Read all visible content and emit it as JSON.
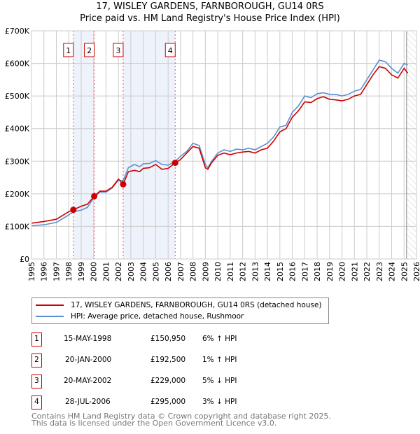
{
  "chart_data": {
    "type": "line",
    "title": "17, WISLEY GARDENS, FARNBOROUGH, GU14 0RS",
    "subtitle": "Price paid vs. HM Land Registry's House Price Index (HPI)",
    "xlim": [
      1995,
      2026
    ],
    "ylim": [
      0,
      700000
    ],
    "y_ticks": [
      0,
      100000,
      200000,
      300000,
      400000,
      500000,
      600000,
      700000
    ],
    "y_tick_labels": [
      "£0",
      "£100K",
      "£200K",
      "£300K",
      "£400K",
      "£500K",
      "£600K",
      "£700K"
    ],
    "x_tick_labels": [
      "1995",
      "1996",
      "1997",
      "1998",
      "1999",
      "2000",
      "2001",
      "2002",
      "2003",
      "2004",
      "2005",
      "2006",
      "2007",
      "2008",
      "2009",
      "2010",
      "2011",
      "2012",
      "2013",
      "2014",
      "2015",
      "2016",
      "2017",
      "2018",
      "2019",
      "2020",
      "2021",
      "2022",
      "2023",
      "2024",
      "2025",
      "2026"
    ],
    "grid": true,
    "forecast_start": 2025.2,
    "colors": {
      "property": "#cc0000",
      "hpi": "#5b8fd0",
      "band": "#eef2fb"
    },
    "series": [
      {
        "name": "17, WISLEY GARDENS, FARNBOROUGH, GU14 0RS (detached house)",
        "x": [
          1995,
          1996,
          1997,
          1998,
          1998.37,
          1999,
          1999.5,
          2000.05,
          2000.5,
          2001,
          2001.5,
          2002,
          2002.38,
          2002.8,
          2003.3,
          2003.7,
          2004,
          2004.5,
          2005,
          2005.5,
          2006,
          2006.57,
          2007,
          2007.5,
          2008,
          2008.5,
          2009,
          2009.2,
          2009.5,
          2010,
          2010.5,
          2011,
          2011.5,
          2012,
          2012.5,
          2013,
          2013.5,
          2014,
          2014.5,
          2015,
          2015.5,
          2016,
          2016.5,
          2017,
          2017.5,
          2018,
          2018.5,
          2019,
          2019.5,
          2020,
          2020.5,
          2021,
          2021.5,
          2022,
          2022.5,
          2023,
          2023.5,
          2024,
          2024.5,
          2025,
          2025.3
        ],
        "values": [
          110000,
          115000,
          122000,
          145000,
          150950,
          162000,
          168000,
          192500,
          208000,
          208000,
          220000,
          245000,
          229000,
          268000,
          272000,
          268000,
          278000,
          280000,
          290000,
          275000,
          278000,
          295000,
          305000,
          325000,
          345000,
          340000,
          280000,
          275000,
          295000,
          318000,
          325000,
          320000,
          325000,
          328000,
          330000,
          325000,
          335000,
          340000,
          362000,
          390000,
          400000,
          435000,
          455000,
          482000,
          480000,
          492000,
          498000,
          490000,
          488000,
          485000,
          490000,
          500000,
          505000,
          535000,
          565000,
          590000,
          585000,
          565000,
          555000,
          585000,
          570000
        ]
      },
      {
        "name": "HPI: Average price, detached house, Rushmoor",
        "x": [
          1995,
          1996,
          1997,
          1998,
          1998.37,
          1999,
          1999.5,
          2000.05,
          2000.5,
          2001,
          2001.5,
          2002,
          2002.38,
          2002.8,
          2003.3,
          2003.7,
          2004,
          2004.5,
          2005,
          2005.5,
          2006,
          2006.57,
          2007,
          2007.5,
          2008,
          2008.5,
          2009,
          2009.2,
          2009.5,
          2010,
          2010.5,
          2011,
          2011.5,
          2012,
          2012.5,
          2013,
          2013.5,
          2014,
          2014.5,
          2015,
          2015.5,
          2016,
          2016.5,
          2017,
          2017.5,
          2018,
          2018.5,
          2019,
          2019.5,
          2020,
          2020.5,
          2021,
          2021.5,
          2022,
          2022.5,
          2023,
          2023.5,
          2024,
          2024.5,
          2025,
          2025.3
        ],
        "values": [
          102000,
          105000,
          112000,
          135000,
          145000,
          150000,
          158000,
          190000,
          205000,
          205000,
          218000,
          242000,
          240000,
          280000,
          290000,
          283000,
          292000,
          293000,
          302000,
          290000,
          288000,
          300000,
          315000,
          330000,
          355000,
          348000,
          290000,
          280000,
          300000,
          325000,
          335000,
          330000,
          337000,
          335000,
          340000,
          335000,
          345000,
          355000,
          375000,
          405000,
          410000,
          450000,
          470000,
          500000,
          495000,
          507000,
          510000,
          505000,
          505000,
          500000,
          505000,
          515000,
          520000,
          550000,
          580000,
          610000,
          605000,
          585000,
          570000,
          600000,
          595000
        ]
      }
    ],
    "sales": [
      {
        "label": "1",
        "x": 1998.37,
        "date": "15-MAY-1998",
        "price_value": 150950,
        "price": "£150,950",
        "hpi_diff": "6% ↑ HPI"
      },
      {
        "label": "2",
        "x": 2000.05,
        "date": "20-JAN-2000",
        "price_value": 192500,
        "price": "£192,500",
        "hpi_diff": "1% ↑ HPI"
      },
      {
        "label": "3",
        "x": 2002.38,
        "date": "20-MAY-2002",
        "price_value": 229000,
        "price": "£229,000",
        "hpi_diff": "5% ↓ HPI"
      },
      {
        "label": "4",
        "x": 2006.57,
        "date": "28-JUL-2006",
        "price_value": 295000,
        "price": "£295,000",
        "hpi_diff": "3% ↓ HPI"
      }
    ],
    "legend_placement": "below"
  },
  "footer": {
    "line1": "Contains HM Land Registry data © Crown copyright and database right 2025.",
    "line2": "This data is licensed under the Open Government Licence v3.0."
  }
}
